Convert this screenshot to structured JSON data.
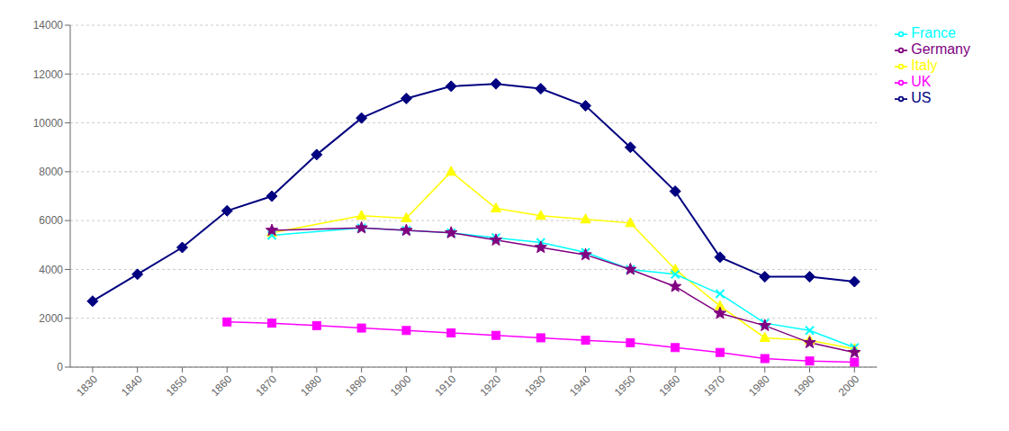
{
  "chart_data": {
    "type": "line",
    "x": [
      1830,
      1840,
      1850,
      1860,
      1870,
      1880,
      1890,
      1900,
      1910,
      1920,
      1930,
      1940,
      1950,
      1960,
      1970,
      1980,
      1990,
      2000
    ],
    "series": [
      {
        "name": "US",
        "color": "#000080",
        "marker": "diamond",
        "values": [
          2700,
          3800,
          4900,
          6400,
          7000,
          8700,
          10200,
          11000,
          11500,
          11600,
          11400,
          10700,
          9000,
          7200,
          4500,
          3700,
          3700,
          3500
        ]
      },
      {
        "name": "UK",
        "color": "#FF00FF",
        "marker": "square",
        "values": [
          null,
          null,
          null,
          1850,
          1800,
          1700,
          1600,
          1500,
          1400,
          1300,
          1200,
          1100,
          1000,
          800,
          600,
          350,
          250,
          200
        ]
      },
      {
        "name": "Italy",
        "color": "#FFFF00",
        "marker": "triangle",
        "values": [
          null,
          null,
          null,
          null,
          5500,
          null,
          6200,
          6100,
          8000,
          6500,
          6200,
          6050,
          5900,
          4000,
          2500,
          1200,
          1100,
          750
        ]
      },
      {
        "name": "France",
        "color": "#00FFFF",
        "marker": "x",
        "values": [
          null,
          null,
          null,
          null,
          5400,
          null,
          5700,
          5600,
          5500,
          5300,
          5100,
          4700,
          4000,
          3800,
          3000,
          1800,
          1500,
          800
        ]
      },
      {
        "name": "Germany",
        "color": "#800080",
        "marker": "star",
        "values": [
          null,
          null,
          null,
          null,
          5600,
          null,
          5700,
          5600,
          5500,
          5200,
          4900,
          4600,
          4000,
          3300,
          2200,
          1700,
          1000,
          600
        ]
      }
    ],
    "xlim": [
      1825,
      2005
    ],
    "xticks": [
      1830,
      1840,
      1850,
      1860,
      1870,
      1880,
      1890,
      1900,
      1910,
      1920,
      1930,
      1940,
      1950,
      1960,
      1970,
      1980,
      1990,
      2000
    ],
    "ylim": [
      0,
      14000
    ],
    "yticks": [
      0,
      2000,
      4000,
      6000,
      8000,
      10000,
      12000,
      14000
    ],
    "grid": true,
    "legend": "right"
  }
}
